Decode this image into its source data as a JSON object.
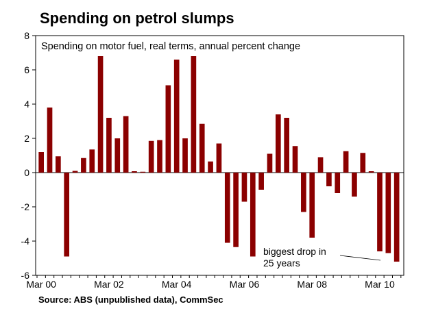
{
  "title": "Spending on petrol slumps",
  "source": "Source: ABS (unpublished data), CommSec",
  "chart_data": {
    "type": "bar",
    "subtitle": "Spending on motor fuel, real terms, annual percent change",
    "x_tick_labels": [
      "Mar 00",
      "Mar 02",
      "Mar 04",
      "Mar 06",
      "Mar 08",
      "Mar 10"
    ],
    "y_ticks": [
      8,
      6,
      4,
      2,
      0,
      -2,
      -4,
      -6
    ],
    "ylim": [
      -6,
      8
    ],
    "bar_color": "#8B0000",
    "values": [
      1.2,
      3.8,
      0.95,
      -4.9,
      0.1,
      0.85,
      1.35,
      6.8,
      3.2,
      2.0,
      3.3,
      0.08,
      0.05,
      1.85,
      1.9,
      5.1,
      6.6,
      2.0,
      6.8,
      2.85,
      0.65,
      1.7,
      -4.1,
      -4.35,
      -1.7,
      -4.9,
      -1.0,
      1.1,
      3.4,
      3.2,
      1.55,
      -2.3,
      -3.8,
      0.9,
      -0.8,
      -1.2,
      1.25,
      -1.4,
      1.15,
      0.08,
      -4.6,
      -4.7,
      -5.2
    ],
    "annotation": {
      "line1": "biggest drop in",
      "line2": "25 years"
    }
  }
}
